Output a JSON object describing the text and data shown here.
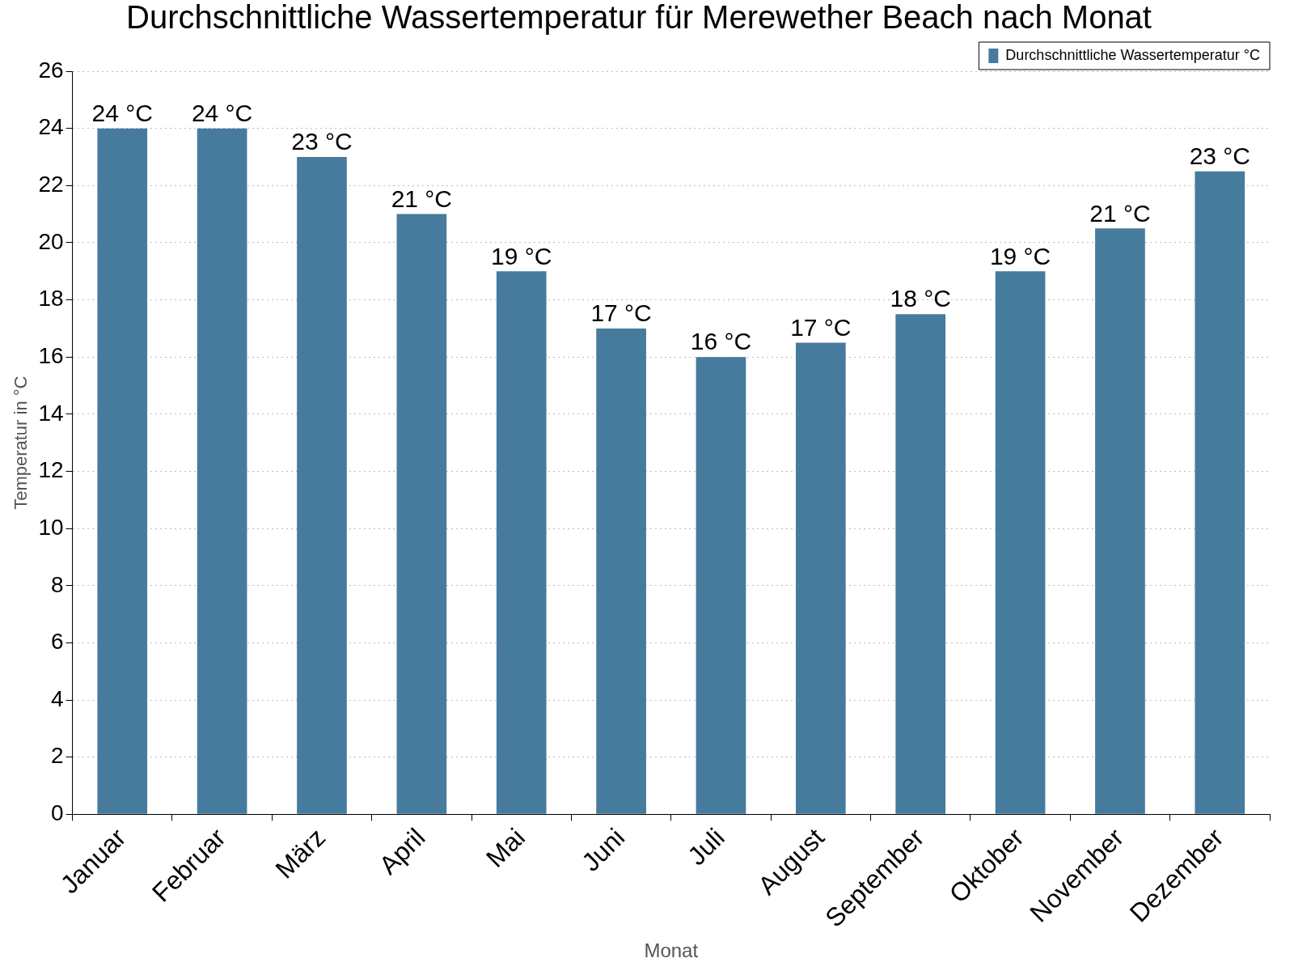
{
  "chart_data": {
    "type": "bar",
    "title": "Durchschnittliche Wassertemperatur für Merewether Beach nach Monat",
    "xlabel": "Monat",
    "ylabel": "Temperatur in °C",
    "categories": [
      "Januar",
      "Februar",
      "März",
      "April",
      "Mai",
      "Juni",
      "Juli",
      "August",
      "September",
      "Oktober",
      "November",
      "Dezember"
    ],
    "series": [
      {
        "name": "Durchschnittliche Wassertemperatur °C",
        "color": "#467b9d",
        "values": [
          24,
          24,
          23,
          21,
          19,
          17,
          16,
          16.5,
          17.5,
          19,
          20.5,
          22.5
        ],
        "value_labels": [
          "24 °C",
          "24 °C",
          "23 °C",
          "21 °C",
          "19 °C",
          "17 °C",
          "16 °C",
          "17 °C",
          "18 °C",
          "19 °C",
          "21 °C",
          "23 °C"
        ]
      }
    ],
    "ylim": [
      0,
      26
    ],
    "yticks": [
      0,
      2,
      4,
      6,
      8,
      10,
      12,
      14,
      16,
      18,
      20,
      22,
      24,
      26
    ],
    "grid": "y",
    "legend": "top right"
  }
}
